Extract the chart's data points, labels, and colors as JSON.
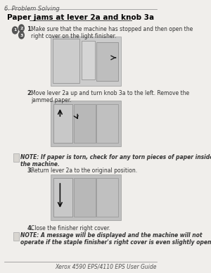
{
  "bg_color": "#f0eeeb",
  "page_bg": "#f0eeeb",
  "header_text": "6. Problem Solving",
  "title": "Paper jams at lever 2a and knob 3a",
  "footer_text": "Xerox 4590 EPS/4110 EPS User Guide",
  "steps": [
    {
      "num": "1.",
      "text": "Make sure that the machine has stopped and then open the\nright cover on the light finisher."
    },
    {
      "num": "2.",
      "text": "Move lever 2a up and turn knob 3a to the left. Remove the\njammed paper."
    },
    {
      "num": "3.",
      "text": "Return lever 2a to the original position."
    },
    {
      "num": "4.",
      "text": "Close the finisher right cover."
    }
  ],
  "notes": [
    {
      "text": "NOTE: If paper is torn, check for any torn pieces of paper inside\nthe machine."
    },
    {
      "text": "NOTE: A message will be displayed and the machine will not\noperate if the staple finisher's right cover is even slightly open."
    }
  ],
  "numbering_label": "1 - 2\n    3",
  "title_fontsize": 7.5,
  "header_fontsize": 6,
  "body_fontsize": 5.5,
  "note_fontsize": 5.5,
  "footer_fontsize": 5.5,
  "step_num_fontsize": 6,
  "line_color": "#888888",
  "text_color": "#333333",
  "note_color": "#333333",
  "title_color": "#000000",
  "header_color": "#555555"
}
